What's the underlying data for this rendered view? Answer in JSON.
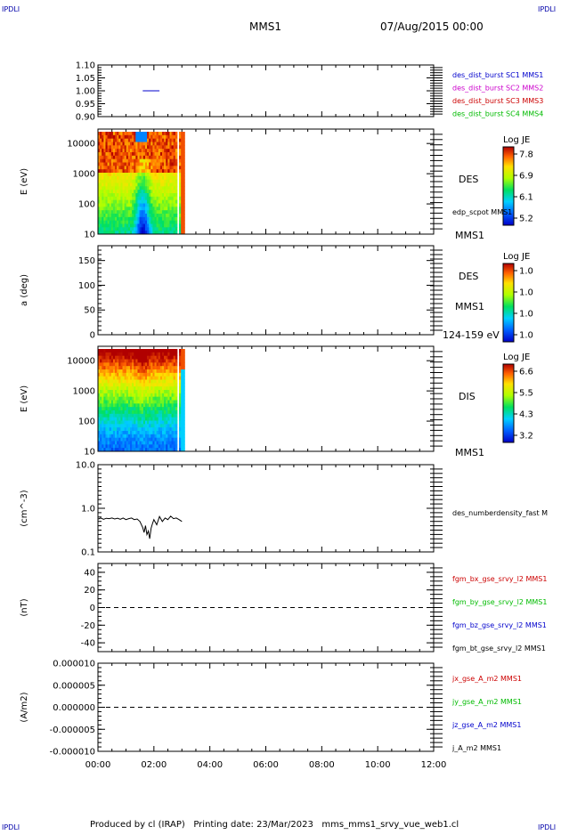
{
  "header": {
    "corner_tl": "IPDLI",
    "corner_tr": "IPDLI",
    "title": "MMS1",
    "date": "07/Aug/2015 00:00",
    "corner_bl": "IPDLI",
    "corner_br": "IPDLI"
  },
  "footer": {
    "text": "Produced by cl (IRAP)   Printing date: 23/Mar/2023   mms_mms1_srvy_vue_web1.cl"
  },
  "time_axis": {
    "ticks": [
      "00:00",
      "02:00",
      "04:00",
      "06:00",
      "08:00",
      "10:00",
      "12:00"
    ],
    "range_hours": [
      0,
      12
    ]
  },
  "colors": {
    "blue": "#0000cc",
    "magenta": "#cc00cc",
    "red": "#cc0000",
    "green": "#00bb00",
    "black": "#000000"
  },
  "chart_data": [
    {
      "id": "panel1",
      "type": "line",
      "ylim": [
        0.9,
        1.1
      ],
      "yticks": [
        "1.10",
        "1.05",
        "1.00",
        "0.95",
        "0.90"
      ],
      "ytick_values": [
        1.1,
        1.05,
        1.0,
        0.95,
        0.9
      ],
      "legend": [
        {
          "text": "des_dist_burst SC1 MMS1",
          "color": "#0000cc"
        },
        {
          "text": "des_dist_burst SC2 MMS2",
          "color": "#cc00cc"
        },
        {
          "text": "des_dist_burst SC3 MMS3",
          "color": "#cc0000"
        },
        {
          "text": "des_dist_burst SC4 MMS4",
          "color": "#00bb00"
        }
      ],
      "series": [
        {
          "name": "des_dist_burst SC1 MMS1",
          "color": "#0000cc",
          "x": [
            1.6,
            2.2
          ],
          "y": [
            1.0,
            1.0
          ]
        }
      ]
    },
    {
      "id": "panel2",
      "type": "heatmap",
      "ylabel": "E (eV)",
      "yscale": "log",
      "ylim": [
        10,
        30000
      ],
      "yticks": [
        "10000",
        "1000",
        "100",
        "10"
      ],
      "ytick_values": [
        10000,
        1000,
        100,
        10
      ],
      "label": "DES",
      "spacecraft": "MMS1",
      "annotation": "edp_scpot MMS1",
      "colorbar": {
        "title": "Log JE",
        "ticks": [
          "7.8",
          "6.9",
          "6.1",
          "5.2"
        ]
      },
      "x_extent_hours": [
        0,
        3.1
      ]
    },
    {
      "id": "panel3",
      "type": "heatmap",
      "ylabel": "a (deg)",
      "ylim": [
        0,
        180
      ],
      "yticks": [
        "150",
        "100",
        "50",
        "0"
      ],
      "ytick_values": [
        150,
        100,
        50,
        0
      ],
      "label": "DES",
      "spacecraft": "MMS1",
      "energy_range": "124-159 eV",
      "colorbar": {
        "title": "Log JE",
        "ticks": [
          "1.0",
          "1.0",
          "1.0",
          "1.0"
        ]
      }
    },
    {
      "id": "panel4",
      "type": "heatmap",
      "ylabel": "E (eV)",
      "yscale": "log",
      "ylim": [
        10,
        30000
      ],
      "yticks": [
        "10000",
        "1000",
        "100",
        "10"
      ],
      "ytick_values": [
        10000,
        1000,
        100,
        10
      ],
      "label": "DIS",
      "spacecraft": "MMS1",
      "colorbar": {
        "title": "Log JE",
        "ticks": [
          "6.6",
          "5.5",
          "4.3",
          "3.2"
        ]
      },
      "x_extent_hours": [
        0,
        3.1
      ]
    },
    {
      "id": "panel5",
      "type": "line",
      "ylabel": "(cm^-3)",
      "yscale": "log",
      "ylim": [
        0.1,
        10
      ],
      "yticks": [
        "10.0",
        "1.0",
        "0.1"
      ],
      "ytick_values": [
        10,
        1,
        0.1
      ],
      "legend": [
        {
          "text": "des_numberdensity_fast M",
          "color": "#000000"
        }
      ],
      "series": [
        {
          "name": "des_numberdensity_fast M",
          "color": "#000000",
          "x": [
            0.02,
            0.1,
            0.2,
            0.3,
            0.4,
            0.5,
            0.6,
            0.7,
            0.8,
            0.9,
            1.0,
            1.1,
            1.2,
            1.3,
            1.4,
            1.5,
            1.6,
            1.65,
            1.7,
            1.75,
            1.8,
            1.85,
            1.9,
            1.95,
            2.0,
            2.1,
            2.2,
            2.3,
            2.4,
            2.5,
            2.6,
            2.7,
            2.8,
            2.9,
            3.0
          ],
          "y": [
            0.57,
            0.6,
            0.56,
            0.59,
            0.58,
            0.6,
            0.57,
            0.59,
            0.56,
            0.6,
            0.55,
            0.58,
            0.6,
            0.55,
            0.57,
            0.5,
            0.36,
            0.28,
            0.4,
            0.25,
            0.3,
            0.2,
            0.35,
            0.45,
            0.55,
            0.42,
            0.65,
            0.5,
            0.6,
            0.55,
            0.66,
            0.58,
            0.6,
            0.55,
            0.5
          ]
        }
      ]
    },
    {
      "id": "panel6",
      "type": "line",
      "ylabel": "(nT)",
      "ylim": [
        -50,
        50
      ],
      "yticks": [
        "40",
        "20",
        "0",
        "-20",
        "-40"
      ],
      "ytick_values": [
        40,
        20,
        0,
        -20,
        -40
      ],
      "reference_line": 0,
      "legend": [
        {
          "text": "fgm_bx_gse_srvy_l2 MMS1",
          "color": "#cc0000"
        },
        {
          "text": "fgm_by_gse_srvy_l2 MMS1",
          "color": "#00bb00"
        },
        {
          "text": "fgm_bz_gse_srvy_l2 MMS1",
          "color": "#0000cc"
        },
        {
          "text": "fgm_bt_gse_srvy_l2 MMS1",
          "color": "#000000"
        }
      ]
    },
    {
      "id": "panel7",
      "type": "line",
      "ylabel": "(A/m2)",
      "ylim": [
        -1e-05,
        1e-05
      ],
      "yticks": [
        "0.000010",
        "0.000005",
        "0.000000",
        "-0.000005",
        "-0.000010"
      ],
      "ytick_values": [
        1e-05,
        5e-06,
        0,
        -5e-06,
        -1e-05
      ],
      "reference_line": 0,
      "legend": [
        {
          "text": "jx_gse_A_m2 MMS1",
          "color": "#cc0000"
        },
        {
          "text": "jy_gse_A_m2 MMS1",
          "color": "#00bb00"
        },
        {
          "text": "jz_gse_A_m2 MMS1",
          "color": "#0000cc"
        },
        {
          "text": "j_A_m2 MMS1",
          "color": "#000000"
        }
      ]
    }
  ]
}
